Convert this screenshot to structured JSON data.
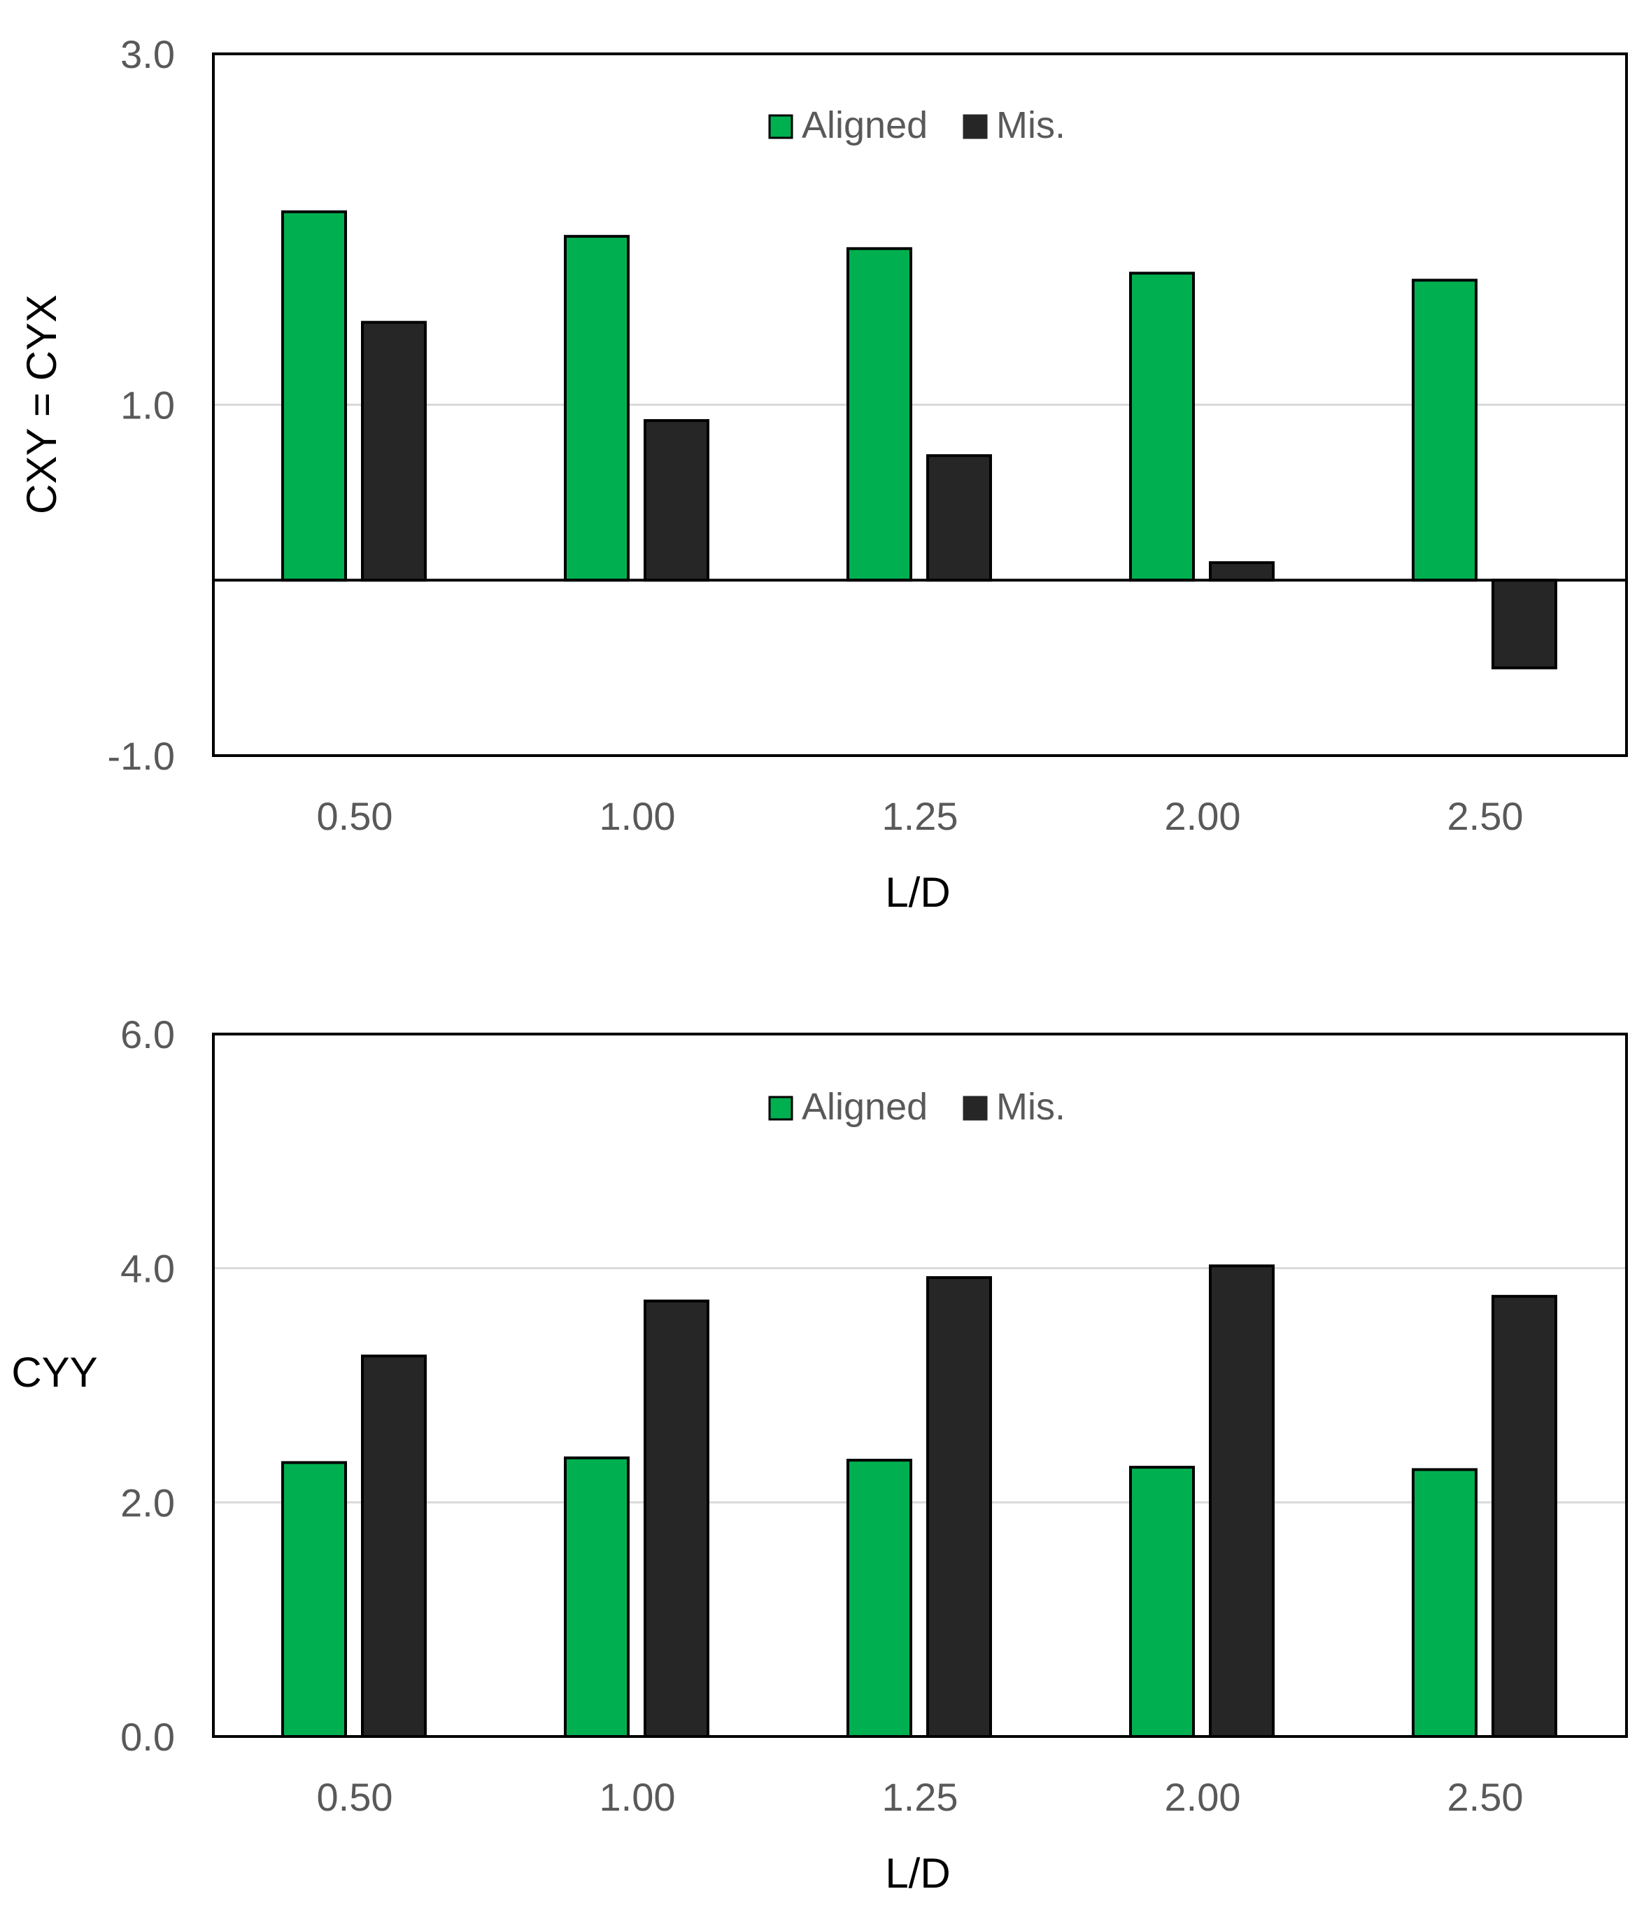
{
  "colors": {
    "aligned": "#00B050",
    "mis": "#262626",
    "grid": "#D9D9D9",
    "frame": "#000000"
  },
  "chart_data": [
    {
      "type": "bar",
      "ylabel": "CXY = CYX",
      "xlabel": "L/D",
      "categories": [
        "0.50",
        "1.00",
        "1.25",
        "2.00",
        "2.50"
      ],
      "ylim": [
        -1.0,
        3.0
      ],
      "yticks": [
        "3.0",
        "1.0",
        "-1.0"
      ],
      "ytick_values": [
        3.0,
        1.0,
        -1.0
      ],
      "gridlines": [
        1.0
      ],
      "zero_line": true,
      "legend_position": "top-center",
      "series": [
        {
          "name": "Aligned",
          "values": [
            2.1,
            1.96,
            1.89,
            1.75,
            1.71
          ]
        },
        {
          "name": "Mis.",
          "values": [
            1.47,
            0.91,
            0.71,
            0.1,
            -0.5
          ]
        }
      ]
    },
    {
      "type": "bar",
      "ylabel": "CYY",
      "xlabel": "L/D",
      "categories": [
        "0.50",
        "1.00",
        "1.25",
        "2.00",
        "2.50"
      ],
      "ylim": [
        0.0,
        6.0
      ],
      "yticks": [
        "6.0",
        "4.0",
        "2.0",
        "0.0"
      ],
      "ytick_values": [
        6.0,
        4.0,
        2.0,
        0.0
      ],
      "gridlines": [
        4.0,
        2.0
      ],
      "zero_line": false,
      "legend_position": "top-center",
      "series": [
        {
          "name": "Aligned",
          "values": [
            2.34,
            2.38,
            2.36,
            2.3,
            2.28
          ]
        },
        {
          "name": "Mis.",
          "values": [
            3.25,
            3.72,
            3.92,
            4.02,
            3.76
          ]
        }
      ]
    }
  ]
}
